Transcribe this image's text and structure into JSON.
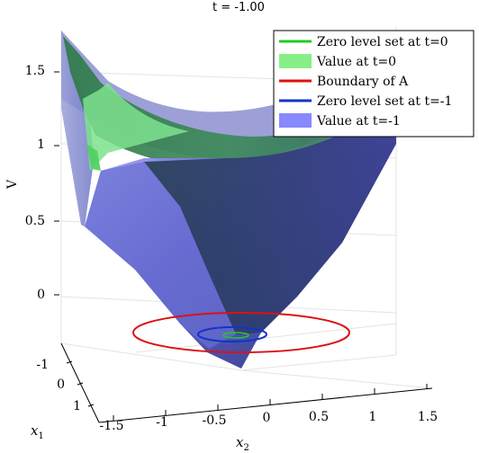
{
  "chart_data": {
    "type": "surface3d",
    "title": "t = -1.00",
    "axes": {
      "z": {
        "label": "V",
        "ticks": [
          "0",
          "0.5",
          "1",
          "1.5"
        ]
      },
      "x1": {
        "label": "x",
        "subscript": "1",
        "ticks": [
          "-1",
          "0",
          "1"
        ]
      },
      "x2": {
        "label": "x",
        "subscript": "2",
        "ticks": [
          "-1.5",
          "-1",
          "-0.5",
          "0",
          "0.5",
          "1",
          "1.5"
        ]
      }
    },
    "grid": true,
    "legend_position": "top-right",
    "legend": [
      {
        "label": "Zero level set at t=0",
        "kind": "line",
        "color": "#22cc22"
      },
      {
        "label": "Value at t=0",
        "kind": "patch",
        "color": "#88ee88"
      },
      {
        "label": "Boundary of A",
        "kind": "line",
        "color": "#dd1111"
      },
      {
        "label": "Zero level set at t=-1",
        "kind": "line",
        "color": "#1133cc"
      },
      {
        "label": "Value at t=-1",
        "kind": "patch",
        "color": "#8888ff"
      }
    ],
    "surfaces": [
      {
        "name": "Value at t=0",
        "color": "#88ee88"
      },
      {
        "name": "Value at t=-1",
        "color": "#7777dd"
      }
    ],
    "curves": [
      {
        "name": "Boundary of A",
        "color": "#dd1111"
      },
      {
        "name": "Zero level set at t=-1",
        "color": "#1133cc"
      },
      {
        "name": "Zero level set at t=0",
        "color": "#22cc22"
      }
    ]
  }
}
